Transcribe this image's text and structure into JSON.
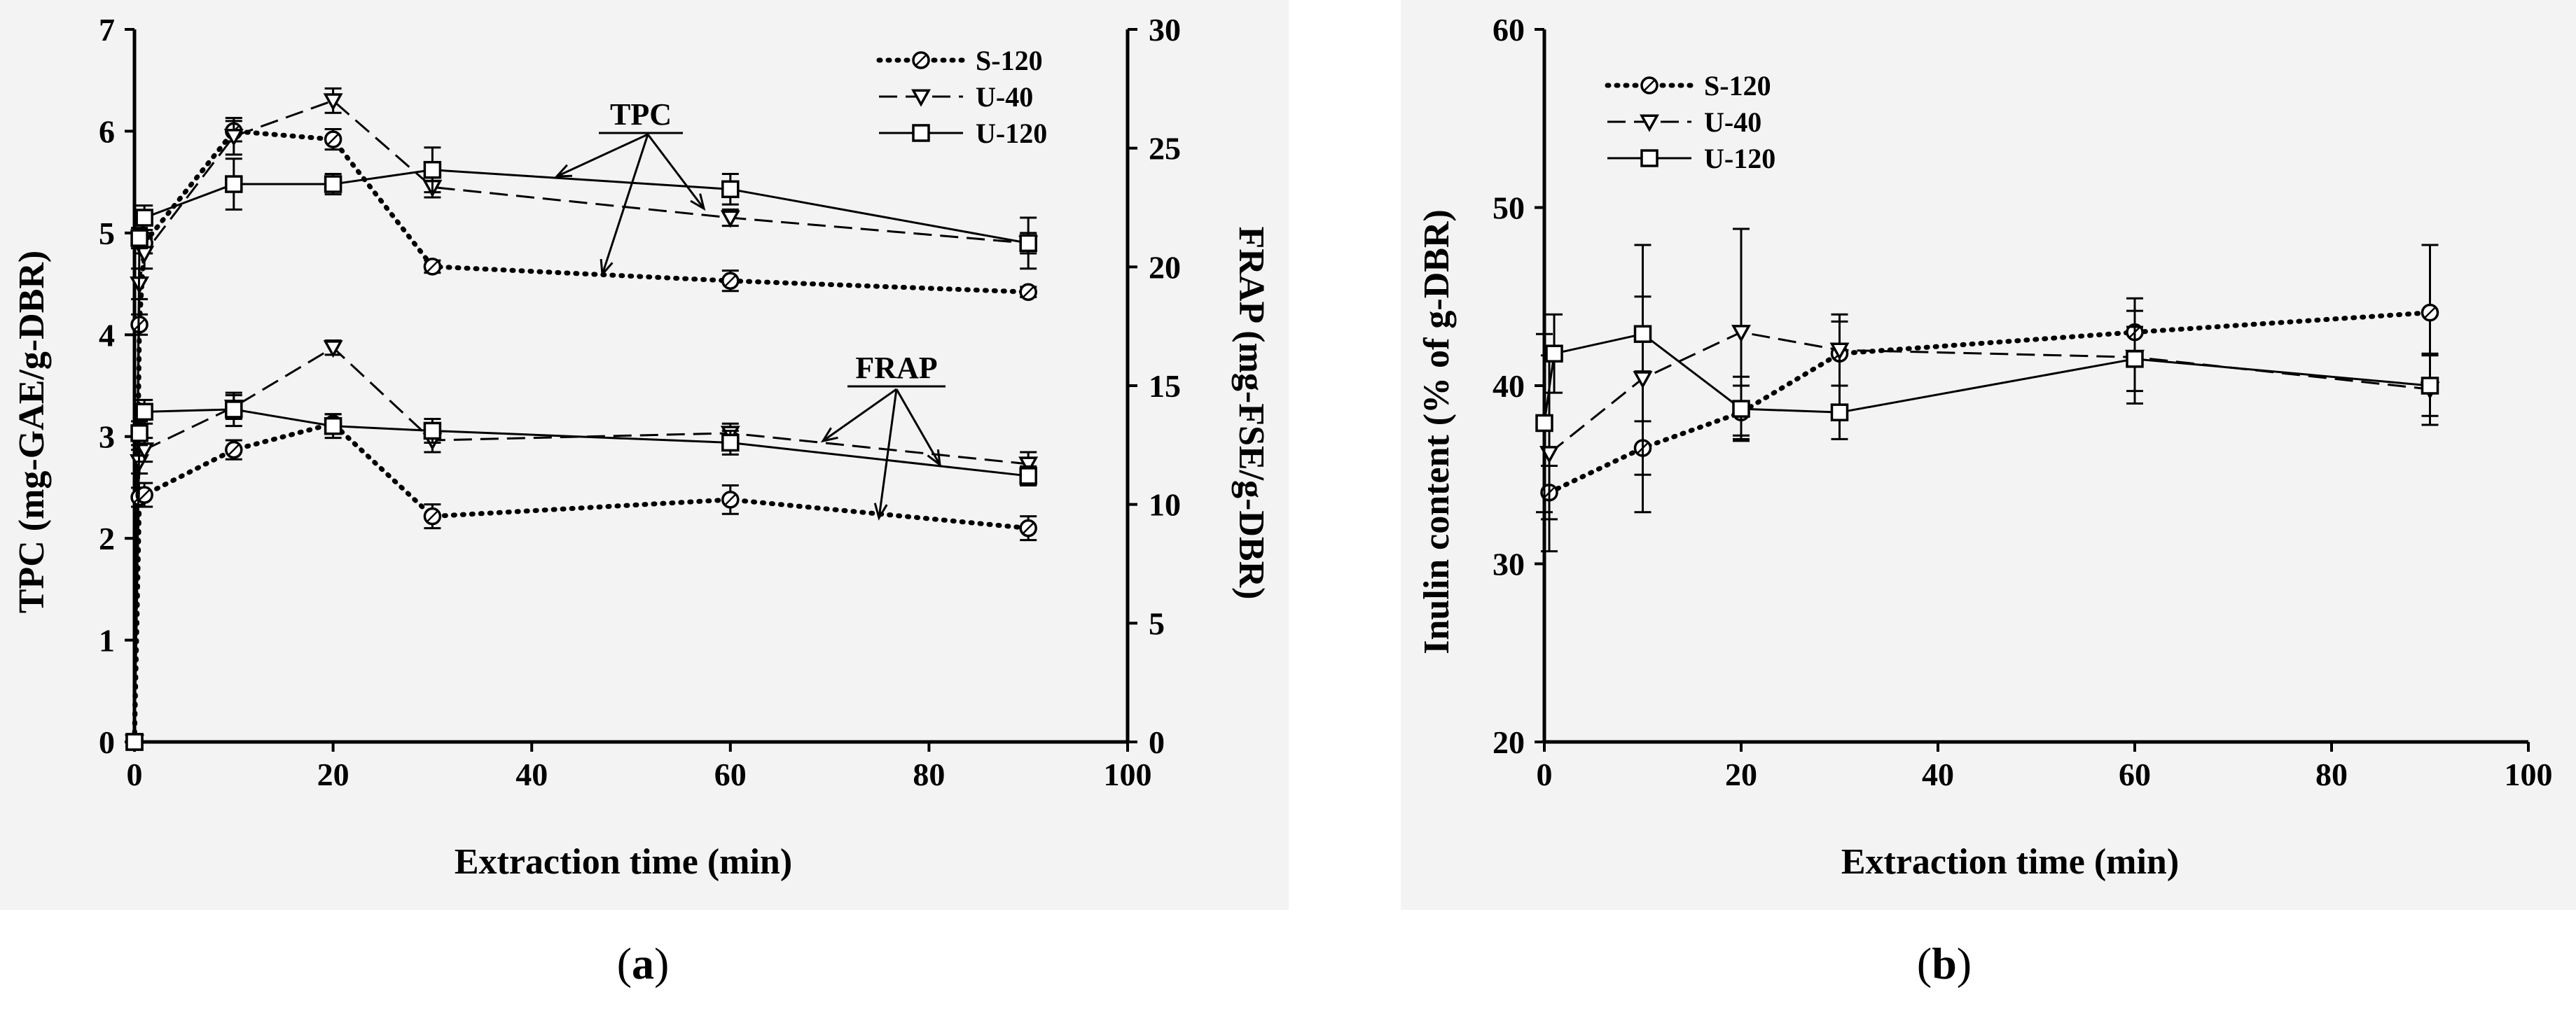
{
  "chart_data": [
    {
      "panel": "a",
      "type": "line",
      "caption_letter": "a",
      "xlabel": "Extraction time (min)",
      "ylabel": "TPC (mg-GAE/g-DBR)",
      "y2label": "FRAP (mg-FSE/g-DBR)",
      "xlim": [
        0,
        100
      ],
      "ylim": [
        0,
        7
      ],
      "y2lim": [
        0,
        30
      ],
      "xticks": [
        "0",
        "20",
        "40",
        "60",
        "80",
        "100"
      ],
      "yticks": [
        "0",
        "1",
        "2",
        "3",
        "4",
        "5",
        "6",
        "7"
      ],
      "y2ticks": [
        "0",
        "5",
        "10",
        "15",
        "20",
        "25",
        "30"
      ],
      "legend": [
        "S-120",
        "U-40",
        "U-120"
      ],
      "legend_position": "top-right",
      "annotations": [
        "TPC",
        "FRAP"
      ],
      "series": [
        {
          "name": "S-120",
          "group": "TPC",
          "axis": "left",
          "style": "dotted",
          "marker": "circle",
          "x": [
            0,
            0.5,
            1,
            10,
            20,
            30,
            60,
            90
          ],
          "y": [
            0,
            4.1,
            4.9,
            6.0,
            5.92,
            4.67,
            4.53,
            4.42
          ],
          "err": [
            0,
            0.1,
            0.1,
            0.1,
            0.1,
            0.06,
            0.1,
            0.05
          ]
        },
        {
          "name": "U-40",
          "group": "TPC",
          "axis": "left",
          "style": "dashed",
          "marker": "triangle-down",
          "x": [
            0,
            0.5,
            1,
            10,
            20,
            30,
            60,
            90
          ],
          "y": [
            0,
            4.5,
            4.8,
            5.95,
            6.3,
            5.45,
            5.15,
            4.9
          ],
          "err": [
            0,
            0.15,
            0.15,
            0.18,
            0.12,
            0.1,
            0.08,
            0.1
          ]
        },
        {
          "name": "U-120",
          "group": "TPC",
          "axis": "left",
          "style": "solid",
          "marker": "square",
          "x": [
            0,
            0.5,
            1,
            10,
            20,
            30,
            60,
            90
          ],
          "y": [
            0,
            4.95,
            5.15,
            5.48,
            5.48,
            5.62,
            5.43,
            4.9
          ],
          "err": [
            0,
            0.1,
            0.12,
            0.25,
            0.1,
            0.22,
            0.15,
            0.25
          ]
        },
        {
          "name": "S-120",
          "group": "FRAP",
          "axis": "right",
          "style": "dotted",
          "marker": "circle",
          "x": [
            0,
            0.5,
            1,
            10,
            20,
            30,
            60,
            90
          ],
          "y": [
            0,
            10.3,
            10.4,
            12.3,
            13.4,
            9.5,
            10.2,
            9.0
          ],
          "err": [
            0,
            0.4,
            0.5,
            0.4,
            0.4,
            0.5,
            0.6,
            0.5
          ]
        },
        {
          "name": "U-40",
          "group": "FRAP",
          "axis": "right",
          "style": "dashed",
          "marker": "triangle-down",
          "x": [
            0,
            0.5,
            1,
            10,
            20,
            30,
            60,
            90
          ],
          "y": [
            0,
            11.8,
            12.3,
            14.1,
            16.6,
            12.7,
            13.0,
            11.7
          ],
          "err": [
            0,
            0.5,
            0.5,
            0.5,
            0.3,
            0.5,
            0.4,
            0.5
          ]
        },
        {
          "name": "U-120",
          "group": "FRAP",
          "axis": "right",
          "style": "solid",
          "marker": "square",
          "x": [
            0,
            0.5,
            1,
            10,
            20,
            30,
            60,
            90
          ],
          "y": [
            0,
            13.0,
            13.9,
            14.0,
            13.3,
            13.1,
            12.6,
            11.2
          ],
          "err": [
            0,
            0.5,
            0.5,
            0.7,
            0.5,
            0.5,
            0.5,
            0.4
          ]
        }
      ]
    },
    {
      "panel": "b",
      "type": "line",
      "caption_letter": "b",
      "xlabel": "Extraction time (min)",
      "ylabel": "Inulin content (% of g-DBR)",
      "xlim": [
        0,
        100
      ],
      "ylim": [
        20,
        60
      ],
      "xticks": [
        "0",
        "20",
        "40",
        "60",
        "80",
        "100"
      ],
      "yticks": [
        "20",
        "30",
        "40",
        "50",
        "60"
      ],
      "legend": [
        "S-120",
        "U-40",
        "U-120"
      ],
      "legend_position": "top-left",
      "series": [
        {
          "name": "S-120",
          "style": "dotted",
          "marker": "circle",
          "x": [
            0.5,
            10,
            20,
            30,
            60,
            90
          ],
          "y": [
            34.0,
            36.5,
            38.5,
            41.8,
            43.0,
            44.1
          ],
          "err": [
            1.5,
            1.5,
            1.5,
            1.8,
            1.9,
            3.8
          ]
        },
        {
          "name": "U-40",
          "style": "dashed",
          "marker": "triangle-down",
          "x": [
            0.5,
            10,
            20,
            30,
            60,
            90
          ],
          "y": [
            36.2,
            40.4,
            43.0,
            42.0,
            41.6,
            39.8
          ],
          "err": [
            5.5,
            7.5,
            5.8,
            2.0,
            2.6,
            2.0
          ]
        },
        {
          "name": "U-120",
          "style": "solid",
          "marker": "square",
          "x": [
            0,
            1,
            10,
            20,
            30,
            60,
            90
          ],
          "y": [
            37.9,
            41.8,
            42.9,
            38.7,
            38.5,
            41.5,
            40.0
          ],
          "err": [
            5.0,
            2.2,
            2.1,
            1.8,
            1.5,
            1.8,
            1.7
          ]
        }
      ]
    }
  ]
}
